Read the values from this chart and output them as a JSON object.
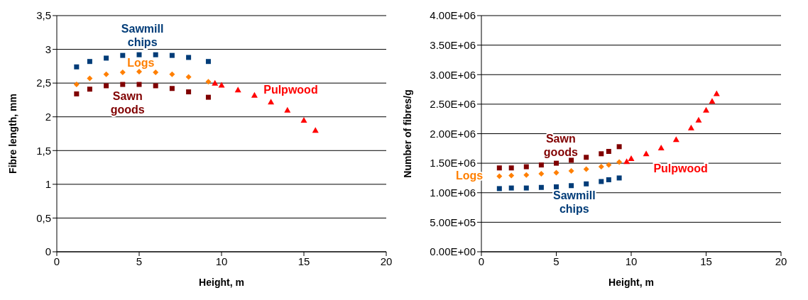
{
  "chart_data": [
    {
      "type": "scatter",
      "xlabel": "Height, m",
      "ylabel": "Fibre length, mm",
      "xlim": [
        0,
        20
      ],
      "xticks": [
        0,
        5,
        10,
        15,
        20
      ],
      "ylim": [
        0,
        3.5
      ],
      "yticks": [
        0,
        {
          "value": 0.5,
          "label": "0,5"
        },
        1,
        {
          "value": 1.5,
          "label": "1,5"
        },
        2,
        {
          "value": 2.5,
          "label": "2,5"
        },
        3,
        {
          "value": 3.5,
          "label": "3,5"
        }
      ],
      "grid": "y",
      "legend": false,
      "series": [
        {
          "name": "Sawmill chips",
          "color": "#003c78",
          "marker": "square",
          "x": [
            1.2,
            2,
            3,
            4,
            5,
            6,
            7,
            8,
            9.2
          ],
          "values": [
            2.74,
            2.82,
            2.87,
            2.91,
            2.92,
            2.92,
            2.91,
            2.88,
            2.82
          ]
        },
        {
          "name": "Logs",
          "color": "#ff7f00",
          "marker": "diamond",
          "x": [
            1.2,
            2,
            3,
            4,
            5,
            6,
            7,
            8,
            9.2
          ],
          "values": [
            2.48,
            2.57,
            2.63,
            2.66,
            2.67,
            2.66,
            2.63,
            2.59,
            2.52
          ]
        },
        {
          "name": "Sawn goods",
          "color": "#800000",
          "marker": "square",
          "x": [
            1.2,
            2,
            3,
            4,
            5,
            6,
            7,
            8,
            9.2
          ],
          "values": [
            2.34,
            2.41,
            2.46,
            2.48,
            2.48,
            2.46,
            2.42,
            2.37,
            2.29
          ]
        },
        {
          "name": "Pulpwood",
          "color": "#ff0000",
          "marker": "triangle",
          "x": [
            9.6,
            10,
            11,
            12,
            13,
            14,
            15,
            15.7
          ],
          "values": [
            2.5,
            2.47,
            2.4,
            2.32,
            2.22,
            2.1,
            1.95,
            1.8
          ]
        }
      ]
    },
    {
      "type": "scatter",
      "xlabel": "Height, m",
      "ylabel": "Number of fibres/g",
      "xlim": [
        0,
        20
      ],
      "xticks": [
        0,
        5,
        10,
        15,
        20
      ],
      "ylim": [
        0,
        4000000
      ],
      "yticks": [
        {
          "value": 0,
          "label": "0.00E+00"
        },
        {
          "value": 500000,
          "label": "5.00E+05"
        },
        {
          "value": 1000000,
          "label": "1.00E+06"
        },
        {
          "value": 1500000,
          "label": "1.50E+06"
        },
        {
          "value": 2000000,
          "label": "2.00E+06"
        },
        {
          "value": 2500000,
          "label": "2.50E+06"
        },
        {
          "value": 3000000,
          "label": "3.00E+06"
        },
        {
          "value": 3500000,
          "label": "3.50E+06"
        },
        {
          "value": 4000000,
          "label": "4.00E+06"
        }
      ],
      "grid": "y",
      "legend": false,
      "series": [
        {
          "name": "Sawmill chips",
          "color": "#003c78",
          "marker": "square",
          "x": [
            1.2,
            2,
            3,
            4,
            5,
            6,
            7,
            8,
            8.5,
            9.2
          ],
          "values": [
            1070000,
            1080000,
            1080000,
            1090000,
            1100000,
            1120000,
            1150000,
            1190000,
            1220000,
            1250000
          ]
        },
        {
          "name": "Logs",
          "color": "#ff7f00",
          "marker": "diamond",
          "x": [
            1.2,
            2,
            3,
            4,
            5,
            6,
            7,
            8,
            8.5,
            9.2
          ],
          "values": [
            1280000,
            1290000,
            1300000,
            1320000,
            1340000,
            1370000,
            1400000,
            1440000,
            1470000,
            1520000
          ]
        },
        {
          "name": "Sawn goods",
          "color": "#800000",
          "marker": "square",
          "x": [
            1.2,
            2,
            3,
            4,
            5,
            6,
            7,
            8,
            8.5,
            9.2
          ],
          "values": [
            1420000,
            1420000,
            1440000,
            1470000,
            1500000,
            1550000,
            1600000,
            1660000,
            1700000,
            1780000
          ]
        },
        {
          "name": "Pulpwood",
          "color": "#ff0000",
          "marker": "triangle",
          "x": [
            9.7,
            10,
            11,
            12,
            13,
            14,
            14.5,
            15,
            15.4,
            15.7
          ],
          "values": [
            1530000,
            1580000,
            1660000,
            1760000,
            1900000,
            2100000,
            2230000,
            2400000,
            2550000,
            2680000
          ]
        }
      ]
    }
  ]
}
